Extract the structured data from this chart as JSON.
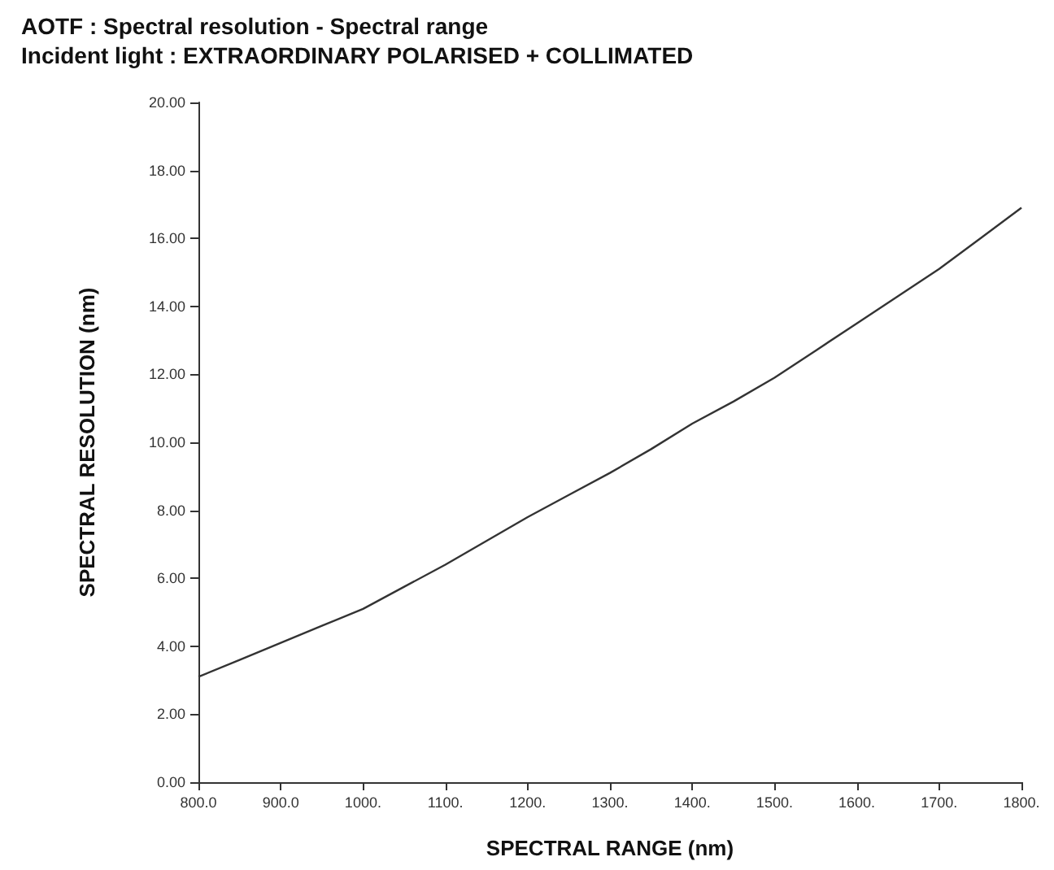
{
  "chart_data": {
    "type": "line",
    "title": "AOTF : Spectral resolution - Spectral range",
    "subtitle": "Incident light : EXTRAORDINARY POLARISED + COLLIMATED",
    "xlabel": "SPECTRAL RANGE (nm)",
    "ylabel": "SPECTRAL RESOLUTION (nm)",
    "x": [
      800,
      850,
      900,
      950,
      1000,
      1050,
      1100,
      1150,
      1200,
      1250,
      1300,
      1350,
      1400,
      1450,
      1500,
      1550,
      1600,
      1650,
      1700,
      1750,
      1800
    ],
    "series": [
      {
        "color": "#333333",
        "values": [
          3.1,
          3.6,
          4.1,
          4.6,
          5.1,
          5.75,
          6.4,
          7.1,
          7.8,
          8.45,
          9.1,
          9.8,
          10.55,
          11.2,
          11.9,
          12.7,
          13.5,
          14.3,
          15.1,
          16.0,
          16.9
        ]
      }
    ],
    "xlim": [
      800,
      1800
    ],
    "xticks": [
      {
        "value": 800,
        "label": "800.0"
      },
      {
        "value": 900,
        "label": "900.0"
      },
      {
        "value": 1000,
        "label": "1000."
      },
      {
        "value": 1100,
        "label": "1100."
      },
      {
        "value": 1200,
        "label": "1200."
      },
      {
        "value": 1300,
        "label": "1300."
      },
      {
        "value": 1400,
        "label": "1400."
      },
      {
        "value": 1500,
        "label": "1500."
      },
      {
        "value": 1600,
        "label": "1600."
      },
      {
        "value": 1700,
        "label": "1700."
      },
      {
        "value": 1800,
        "label": "1800."
      }
    ],
    "ylim": [
      0,
      20
    ],
    "yticks": [
      {
        "value": 0,
        "label": "0.00"
      },
      {
        "value": 2,
        "label": "2.00"
      },
      {
        "value": 4,
        "label": "4.00"
      },
      {
        "value": 6,
        "label": "6.00"
      },
      {
        "value": 8,
        "label": "8.00"
      },
      {
        "value": 10,
        "label": "10.00"
      },
      {
        "value": 12,
        "label": "12.00"
      },
      {
        "value": 14,
        "label": "14.00"
      },
      {
        "value": 16,
        "label": "16.00"
      },
      {
        "value": 18,
        "label": "18.00"
      },
      {
        "value": 20,
        "label": "20.00"
      }
    ],
    "grid": false,
    "marker": "none",
    "line_style": "solid"
  }
}
